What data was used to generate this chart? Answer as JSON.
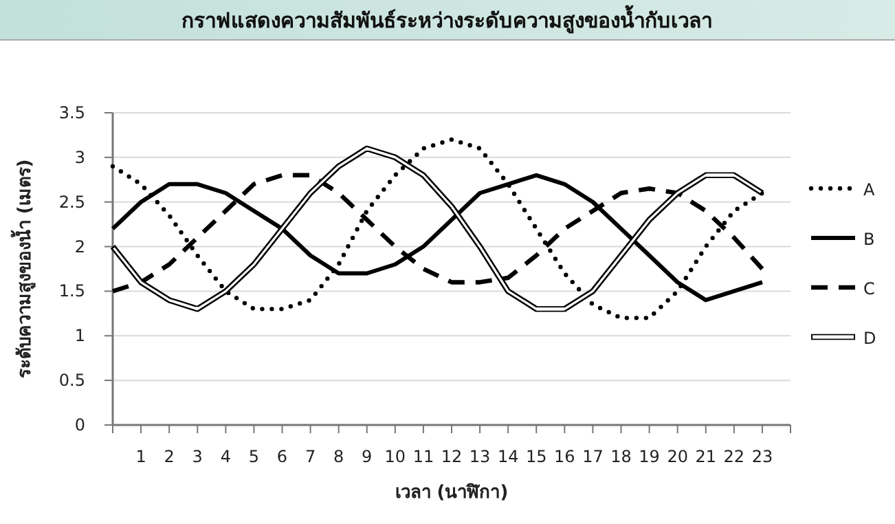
{
  "chart_data": {
    "type": "line",
    "title": "กราฟแสดงความสัมพันธ์ระหว่างระดับความสูงของน้ำกับเวลา",
    "xlabel": "เวลา (นาฬิกา)",
    "ylabel": "ระดับความสูงของน้ำ (เมตร)",
    "x": [
      0,
      1,
      2,
      3,
      4,
      5,
      6,
      7,
      8,
      9,
      10,
      11,
      12,
      13,
      14,
      15,
      16,
      17,
      18,
      19,
      20,
      21,
      22,
      23
    ],
    "xlim": [
      0,
      24
    ],
    "xticks": [
      {
        "value": 0,
        "label": null
      },
      1,
      2,
      3,
      4,
      5,
      6,
      7,
      8,
      9,
      10,
      11,
      12,
      13,
      14,
      15,
      16,
      17,
      18,
      19,
      20,
      21,
      22,
      23,
      {
        "value": 24,
        "label": null
      }
    ],
    "ylim": [
      0,
      3.5
    ],
    "yticks": [
      0,
      0.5,
      1,
      1.5,
      2,
      2.5,
      3,
      3.5
    ],
    "grid": "y",
    "legend": "right",
    "series": [
      {
        "name": "A",
        "color": "#000000",
        "line_style": "dotted",
        "values": [
          2.9,
          2.7,
          2.35,
          1.9,
          1.5,
          1.3,
          1.3,
          1.4,
          1.8,
          2.4,
          2.8,
          3.1,
          3.2,
          3.1,
          2.7,
          2.2,
          1.7,
          1.35,
          1.2,
          1.2,
          1.5,
          2.0,
          2.4,
          2.6
        ]
      },
      {
        "name": "B",
        "color": "#000000",
        "line_style": "solid",
        "values": [
          2.2,
          2.5,
          2.7,
          2.7,
          2.6,
          2.4,
          2.2,
          1.9,
          1.7,
          1.7,
          1.8,
          2.0,
          2.3,
          2.6,
          2.7,
          2.8,
          2.7,
          2.5,
          2.2,
          1.9,
          1.6,
          1.4,
          1.5,
          1.6
        ]
      },
      {
        "name": "C",
        "color": "#000000",
        "line_style": "dashed",
        "values": [
          1.5,
          1.6,
          1.8,
          2.1,
          2.4,
          2.7,
          2.8,
          2.8,
          2.6,
          2.3,
          2.0,
          1.75,
          1.6,
          1.6,
          1.65,
          1.9,
          2.2,
          2.4,
          2.6,
          2.65,
          2.6,
          2.4,
          2.1,
          1.75
        ]
      },
      {
        "name": "D",
        "color": "#000000",
        "line_style": "solid",
        "values": [
          2.0,
          1.6,
          1.4,
          1.3,
          1.5,
          1.8,
          2.2,
          2.6,
          2.9,
          3.1,
          3.0,
          2.8,
          2.45,
          2.0,
          1.5,
          1.3,
          1.3,
          1.5,
          1.9,
          2.3,
          2.6,
          2.8,
          2.8,
          2.6
        ]
      }
    ]
  }
}
